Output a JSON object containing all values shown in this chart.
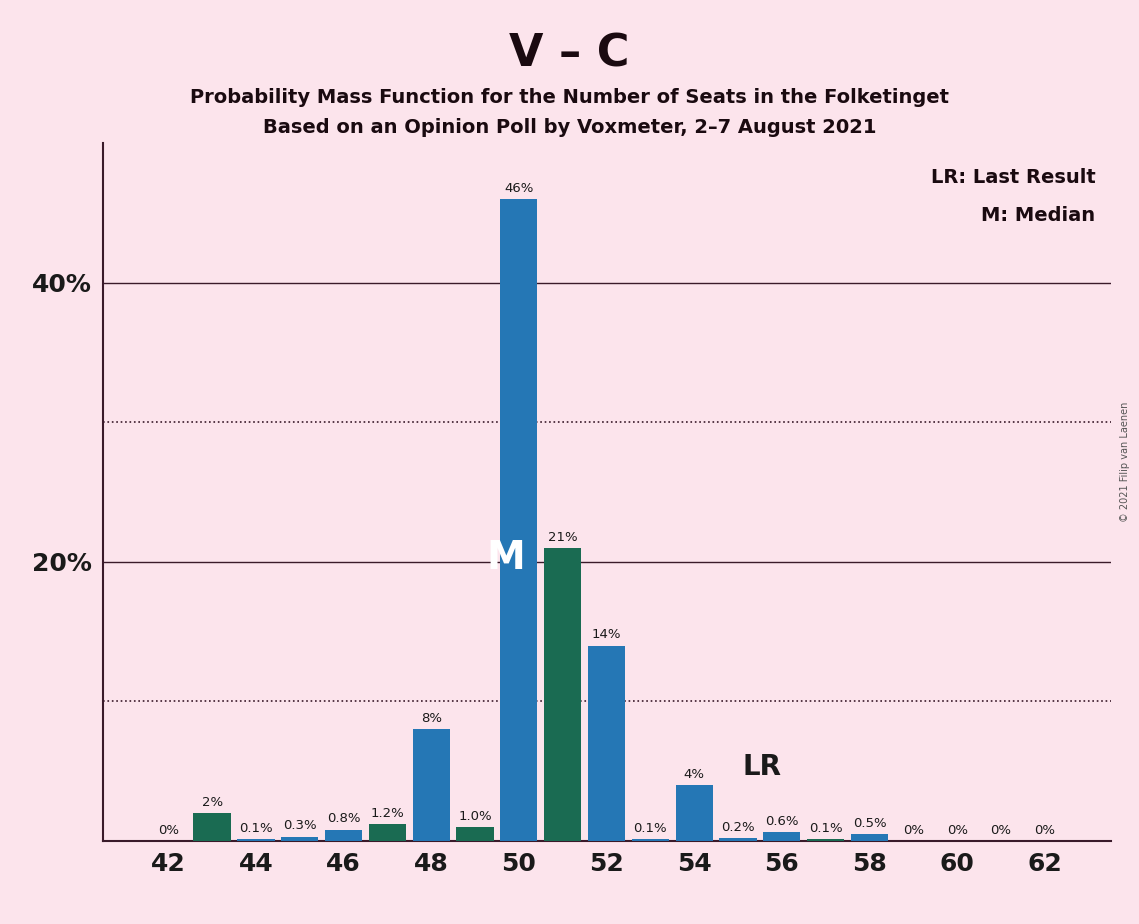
{
  "title_main": "V – C",
  "title_sub1": "Probability Mass Function for the Number of Seats in the Folketinget",
  "title_sub2": "Based on an Opinion Poll by Voxmeter, 2–7 August 2021",
  "copyright": "© 2021 Filip van Laenen",
  "seats": [
    42,
    43,
    44,
    45,
    46,
    47,
    48,
    49,
    50,
    51,
    52,
    53,
    54,
    55,
    56,
    57,
    58,
    59,
    60,
    61,
    62
  ],
  "values": [
    0.0,
    2.0,
    0.1,
    0.3,
    0.8,
    1.2,
    8.0,
    1.0,
    46.0,
    21.0,
    14.0,
    0.1,
    4.0,
    0.2,
    0.6,
    0.1,
    0.5,
    0.0,
    0.0,
    0.0,
    0.0
  ],
  "labels": [
    "0%",
    "2%",
    "0.1%",
    "0.3%",
    "0.8%",
    "1.2%",
    "8%",
    "1.0%",
    "46%",
    "21%",
    "14%",
    "0.1%",
    "4%",
    "0.2%",
    "0.6%",
    "0.1%",
    "0.5%",
    "0%",
    "0%",
    "0%",
    "0%"
  ],
  "colors": [
    "#2577b5",
    "#1a6b52",
    "#2577b5",
    "#2577b5",
    "#2577b5",
    "#1a6b52",
    "#2577b5",
    "#1a6b52",
    "#2577b5",
    "#1a6b52",
    "#2577b5",
    "#2577b5",
    "#2577b5",
    "#2577b5",
    "#2577b5",
    "#1a6b52",
    "#2577b5",
    "#2577b5",
    "#2577b5",
    "#2577b5",
    "#2577b5"
  ],
  "median_seat": 50,
  "lr_seat": 54,
  "background_color": "#fce4ec",
  "ylim": [
    0,
    50
  ],
  "xtick_labels": [
    "42",
    "44",
    "46",
    "48",
    "50",
    "52",
    "54",
    "56",
    "58",
    "60",
    "62"
  ],
  "xtick_positions": [
    42,
    44,
    46,
    48,
    50,
    52,
    54,
    56,
    58,
    60,
    62
  ],
  "legend_lr": "LR: Last Result",
  "legend_m": "M: Median",
  "solid_gridlines": [
    20,
    40
  ],
  "dotted_gridlines": [
    10,
    30
  ],
  "ytick_positions": [
    20,
    40
  ],
  "ytick_labels": [
    "20%",
    "40%"
  ],
  "xlim": [
    40.5,
    63.5
  ]
}
